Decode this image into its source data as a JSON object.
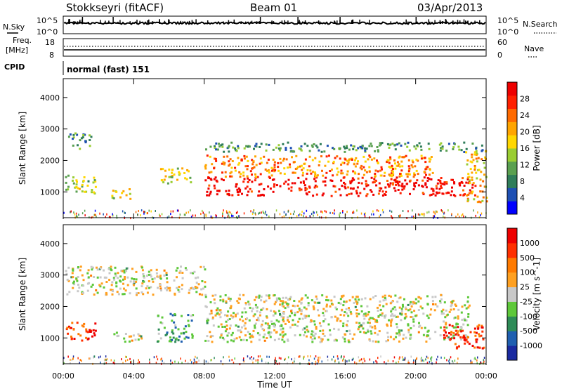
{
  "header": {
    "station": "Stokkseyri (fitACF)",
    "beam": "Beam 01",
    "date": "03/Apr/2013"
  },
  "noise_panel": {
    "left_label": "N.Sky",
    "right_label": "N.Search",
    "tick_top": "10^5",
    "tick_bottom": "10^0"
  },
  "freq_panel": {
    "left_label_1": "Freq.",
    "left_label_2": "[MHz]",
    "left_tick_top": "18",
    "left_tick_bottom": "8",
    "right_label": "Nave",
    "right_tick_top": "60",
    "right_tick_bottom": "0"
  },
  "cpid_panel": {
    "label": "CPID",
    "text": "normal (fast) 151"
  },
  "power_panel": {
    "ylabel": "Slant Range [km]",
    "colorbar_label": "Power [dB]"
  },
  "velocity_panel": {
    "ylabel": "Slant Range [km]",
    "colorbar_label": "Velocity [m s^-1]"
  },
  "xaxis": {
    "label": "Time UT",
    "tick_labels": [
      "00:00",
      "04:00",
      "08:00",
      "12:00",
      "16:00",
      "20:00",
      "00:00"
    ]
  },
  "chart_data": [
    {
      "type": "heatmap",
      "name": "power",
      "ylabel": "Slant Range [km]",
      "xlabel": "Time UT",
      "xlim_hours": [
        0,
        24
      ],
      "ylim_km": [
        180,
        4600
      ],
      "y_ticks": [
        1000,
        2000,
        3000,
        4000
      ],
      "y_tick_labels": [
        "1000",
        "2000",
        "3000",
        "4000"
      ],
      "colorbar": {
        "label": "Power [dB]",
        "ticks": [
          "4",
          "8",
          "12",
          "16",
          "20",
          "24",
          "28"
        ],
        "colors": [
          "#0000ff",
          "#1e50b4",
          "#2f7d5a",
          "#5aa050",
          "#9acd32",
          "#ffd700",
          "#ffa500",
          "#ff6a00",
          "#ff2000",
          "#ee0000"
        ]
      },
      "regions": [
        {
          "t0": 0.1,
          "t1": 1.9,
          "r0": 950,
          "r1": 1550,
          "level": 0.45
        },
        {
          "t0": 0.2,
          "t1": 1.6,
          "r0": 2400,
          "r1": 2900,
          "level": 0.3
        },
        {
          "t0": 2.7,
          "t1": 3.8,
          "r0": 800,
          "r1": 1150,
          "level": 0.55
        },
        {
          "t0": 5.3,
          "t1": 7.2,
          "r0": 1300,
          "r1": 1800,
          "level": 0.5
        },
        {
          "t0": 8.0,
          "t1": 23.4,
          "r0": 900,
          "r1": 1500,
          "level": 0.95
        },
        {
          "t0": 8.0,
          "t1": 21.0,
          "r0": 1500,
          "r1": 2200,
          "level": 0.7
        },
        {
          "t0": 8.0,
          "t1": 23.8,
          "r0": 2300,
          "r1": 2600,
          "level": 0.3
        },
        {
          "t0": 22.8,
          "t1": 24.0,
          "r0": 700,
          "r1": 2400,
          "level": 0.6
        }
      ]
    },
    {
      "type": "heatmap",
      "name": "velocity",
      "ylabel": "Slant Range [km]",
      "xlabel": "Time UT",
      "xlim_hours": [
        0,
        24
      ],
      "ylim_km": [
        180,
        4600
      ],
      "y_ticks": [
        1000,
        2000,
        3000,
        4000
      ],
      "y_tick_labels": [
        "1000",
        "2000",
        "3000",
        "4000"
      ],
      "colorbar": {
        "label": "Velocity [m s^-1]",
        "ticks": [
          "1000",
          "500",
          "100",
          "25",
          "-25",
          "-100",
          "-500",
          "-1000"
        ],
        "colors": [
          "#1a2aa0",
          "#1f5fb0",
          "#2e8b57",
          "#5ec83a",
          "#c8c8c8",
          "#ffa020",
          "#ff7a00",
          "#ff3000",
          "#ee0000"
        ]
      },
      "regions": [
        {
          "t0": 0.1,
          "t1": 1.9,
          "r0": 950,
          "r1": 1550,
          "level": 0.85
        },
        {
          "t0": 0.1,
          "t1": 8.0,
          "r0": 2400,
          "r1": 3300,
          "level": 0.5
        },
        {
          "t0": 2.6,
          "t1": 4.4,
          "r0": 900,
          "r1": 1200,
          "level": 0.5
        },
        {
          "t0": 5.3,
          "t1": 7.3,
          "r0": 900,
          "r1": 1800,
          "level": 0.3
        },
        {
          "t0": 8.0,
          "t1": 23.0,
          "r0": 900,
          "r1": 2400,
          "level": 0.5
        },
        {
          "t0": 21.5,
          "t1": 24.0,
          "r0": 700,
          "r1": 1500,
          "level": 0.85
        }
      ]
    }
  ]
}
